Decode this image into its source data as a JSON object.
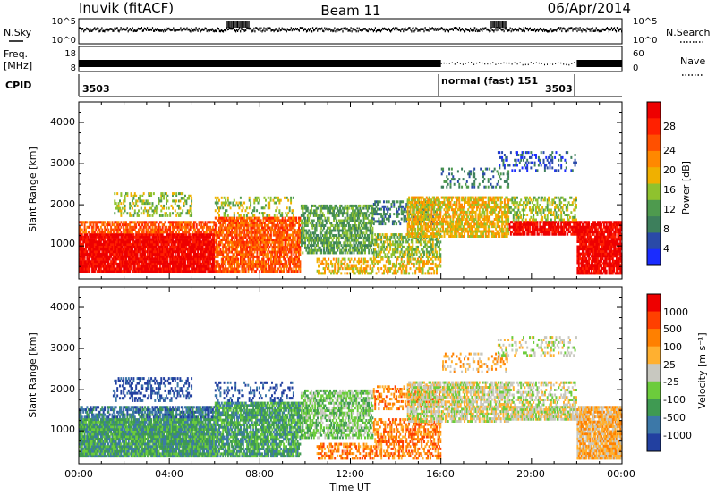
{
  "header": {
    "station": "Inuvik (fitACF)",
    "beam": "Beam 11",
    "date": "06/Apr/2014"
  },
  "strips": {
    "nsky_label": "N.Sky",
    "nsky_ticks": [
      "10^5",
      "10^0"
    ],
    "nsearch_label": "N.Search",
    "nsearch_ticks": [
      "10^5",
      "10^0"
    ],
    "freq_label": "Freq.",
    "freq_unit": "[MHz]",
    "freq_ticks": [
      "18",
      "8"
    ],
    "nave_label": "Nave",
    "nave_ticks": [
      "60",
      "0"
    ],
    "cpid_label": "CPID",
    "cpid_segments": [
      {
        "label": "3503",
        "start_h": 0,
        "end_h": 16
      },
      {
        "label": "normal (fast) 151",
        "start_h": 16,
        "end_h": 22
      },
      {
        "label": "3503",
        "start_h": 22,
        "end_h": 24
      }
    ]
  },
  "axes": {
    "xlabel": "Time UT",
    "ylabel": "Slant Range [km]",
    "x_ticks": [
      "00:00",
      "04:00",
      "08:00",
      "12:00",
      "16:00",
      "20:00",
      "00:00"
    ],
    "y_ticks": [
      "1000",
      "2000",
      "3000",
      "4000"
    ]
  },
  "power_scale": {
    "label": "Power [dB]",
    "ticks": [
      "4",
      "8",
      "12",
      "16",
      "20",
      "24",
      "28"
    ],
    "colors": [
      "#1a2cff",
      "#2a4aa8",
      "#3d7f5c",
      "#4e9a4e",
      "#8fc22e",
      "#f0b000",
      "#ff8800",
      "#ff5000",
      "#ff2000",
      "#ee0000"
    ]
  },
  "velocity_scale": {
    "label": "Velocity [m s⁻¹]",
    "ticks": [
      "1000",
      "500",
      "100",
      "25",
      "-25",
      "-100",
      "-500",
      "-1000"
    ],
    "colors": [
      "#2240a0",
      "#3c78a8",
      "#3f9a52",
      "#6ccc3c",
      "#c8c8c0",
      "#ffb030",
      "#ff8000",
      "#ff4000",
      "#ee0000"
    ]
  },
  "chart_data": {
    "type": "heatmap",
    "panels": [
      {
        "name": "Power",
        "unit": "dB",
        "range": [
          0,
          30
        ]
      },
      {
        "name": "Velocity",
        "unit": "m s⁻¹",
        "range": [
          -1000,
          1000
        ]
      }
    ],
    "x_range_hours": [
      0,
      24
    ],
    "y_range_km": [
      200,
      4500
    ],
    "cpid_changes_h": [
      16,
      22
    ]
  }
}
